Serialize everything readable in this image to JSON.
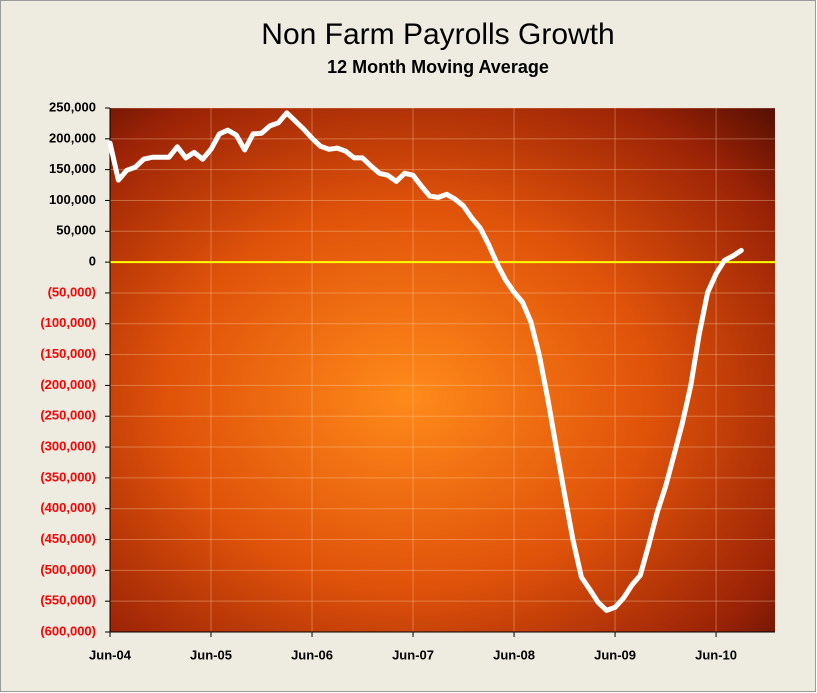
{
  "chart_data": {
    "type": "line",
    "title": "Non Farm Payrolls Growth",
    "subtitle": "12 Month Moving Average",
    "categories": [
      "Jun-04",
      null,
      null,
      null,
      null,
      null,
      null,
      null,
      null,
      null,
      null,
      null,
      "Jun-05",
      null,
      null,
      null,
      null,
      null,
      null,
      null,
      null,
      null,
      null,
      null,
      "Jun-06",
      null,
      null,
      null,
      null,
      null,
      null,
      null,
      null,
      null,
      null,
      null,
      "Jun-07",
      null,
      null,
      null,
      null,
      null,
      null,
      null,
      null,
      null,
      null,
      null,
      "Jun-08",
      null,
      null,
      null,
      null,
      null,
      null,
      null,
      null,
      null,
      null,
      null,
      "Jun-09",
      null,
      null,
      null,
      null,
      null,
      null,
      null,
      null,
      null,
      null,
      null,
      "Jun-10",
      null,
      null,
      null,
      null,
      null,
      null,
      null
    ],
    "series": [
      {
        "color": "#ffffff",
        "values": [
          193000,
          133000,
          149000,
          154000,
          167000,
          170000,
          170000,
          170000,
          187000,
          169000,
          178000,
          167000,
          183000,
          208000,
          214000,
          206000,
          182000,
          208000,
          209000,
          221000,
          226000,
          242000,
          229000,
          216000,
          201000,
          188000,
          183000,
          185000,
          180000,
          169000,
          169000,
          156000,
          144000,
          141000,
          131000,
          144000,
          141000,
          123000,
          107000,
          105000,
          110000,
          102000,
          91000,
          71000,
          55000,
          28000,
          -3000,
          -29000,
          -49000,
          -65000,
          -97000,
          -151000,
          -221000,
          -299000,
          -377000,
          -451000,
          -511000,
          -531000,
          -552000,
          -565000,
          -560000,
          -545000,
          -524000,
          -508000,
          -459000,
          -406000,
          -364000,
          -313000,
          -261000,
          -200000,
          -117000,
          -49000,
          -19000,
          3000,
          10000,
          19000,
          null,
          null,
          null,
          null
        ]
      }
    ],
    "ylim": [
      -600000,
      250000
    ],
    "yticks": [
      {
        "value": 250000,
        "label": "250,000"
      },
      {
        "value": 200000,
        "label": "200,000"
      },
      {
        "value": 150000,
        "label": "150,000"
      },
      {
        "value": 100000,
        "label": "100,000"
      },
      {
        "value": 50000,
        "label": "50,000"
      },
      0,
      {
        "value": -50000,
        "label": "(50,000)"
      },
      {
        "value": -100000,
        "label": "(100,000)"
      },
      {
        "value": -150000,
        "label": "(150,000)"
      },
      {
        "value": -200000,
        "label": "(200,000)"
      },
      {
        "value": -250000,
        "label": "(250,000)"
      },
      {
        "value": -300000,
        "label": "(300,000)"
      },
      {
        "value": -350000,
        "label": "(350,000)"
      },
      {
        "value": -400000,
        "label": "(400,000)"
      },
      {
        "value": -450000,
        "label": "(450,000)"
      },
      {
        "value": -500000,
        "label": "(500,000)"
      },
      {
        "value": -550000,
        "label": "(550,000)"
      },
      {
        "value": -600000,
        "label": "(600,000)"
      }
    ],
    "negative_tick_color": "#ff0000",
    "zero_line_color": "#ffff00",
    "grid": true
  }
}
